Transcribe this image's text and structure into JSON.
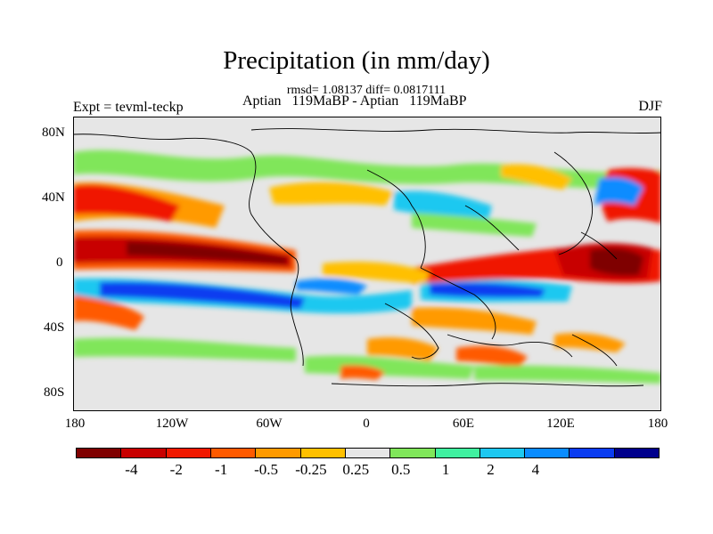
{
  "title": "Precipitation (in mm/day)",
  "stats_line": "rmsd= 1.08137 diff= 0.0817111",
  "comparison_line": "Aptian   119MaBP - Aptian   119MaBP",
  "experiment": "Expt = tevml-teckp",
  "season": "DJF",
  "lat_labels": [
    "80N",
    "40N",
    "0",
    "40S",
    "80S"
  ],
  "lon_labels": [
    "180",
    "120W",
    "60W",
    "0",
    "60E",
    "120E",
    "180"
  ],
  "colorbar": {
    "colors": [
      "#7f0000",
      "#c80000",
      "#f01800",
      "#ff5a00",
      "#ff9a00",
      "#ffc000",
      "#e6e6e6",
      "#80e65a",
      "#40f0a0",
      "#1ec8f0",
      "#0a8cff",
      "#0a3cf0",
      "#00008c"
    ],
    "labels": [
      "-4",
      "-2",
      "-1",
      "-0.5",
      "-0.25",
      "0.25",
      "0.5",
      "1",
      "2",
      "4"
    ]
  }
}
